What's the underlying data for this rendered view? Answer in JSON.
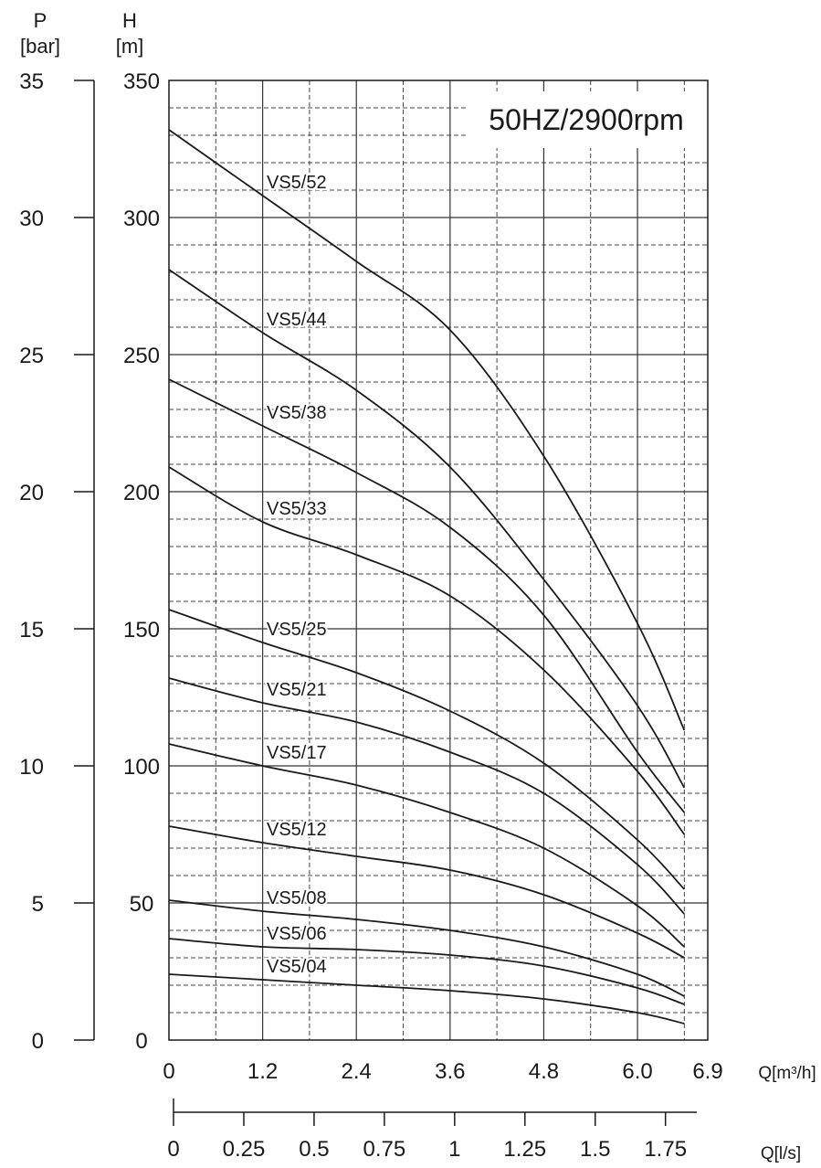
{
  "chart_data": {
    "type": "line",
    "title": "50HZ/2900rpm",
    "axes": {
      "p": {
        "label_top": "P",
        "label_unit": "[bar]",
        "ticks": [
          "0",
          "5",
          "10",
          "15",
          "20",
          "25",
          "30",
          "35"
        ],
        "range": [
          0,
          35
        ]
      },
      "h": {
        "label_top": "H",
        "label_unit": "[m]",
        "ticks": [
          "0",
          "50",
          "100",
          "150",
          "200",
          "250",
          "300",
          "350"
        ],
        "range": [
          0,
          350
        ]
      },
      "q_m3h": {
        "label": "Q[m³/h]",
        "ticks": [
          "0",
          "1.2",
          "2.4",
          "3.6",
          "4.8",
          "6.0",
          "6.9"
        ],
        "tick_values": [
          0,
          1.2,
          2.4,
          3.6,
          4.8,
          6.0,
          6.9
        ],
        "range": [
          0,
          6.9
        ]
      },
      "q_ls": {
        "label": "Q[l/s]",
        "ticks": [
          "0",
          "0.25",
          "0.5",
          "0.75",
          "1",
          "1.25",
          "1.5",
          "1.75"
        ],
        "tick_values": [
          0,
          0.25,
          0.5,
          0.75,
          1,
          1.25,
          1.5,
          1.75
        ]
      }
    },
    "grid": true,
    "series": [
      {
        "name": "VS5/52",
        "x": [
          0,
          1.2,
          2.4,
          3.6,
          4.8,
          6.0,
          6.6
        ],
        "y": [
          332,
          308,
          284,
          259,
          213,
          152,
          113
        ]
      },
      {
        "name": "VS5/44",
        "x": [
          0,
          1.2,
          2.4,
          3.6,
          4.8,
          6.0,
          6.6
        ],
        "y": [
          281,
          258,
          237,
          209,
          168,
          122,
          92
        ]
      },
      {
        "name": "VS5/38",
        "x": [
          0,
          1.2,
          2.4,
          3.6,
          4.8,
          6.0,
          6.6
        ],
        "y": [
          241,
          224,
          207,
          187,
          155,
          105,
          83
        ]
      },
      {
        "name": "VS5/33",
        "x": [
          0,
          1.2,
          2.4,
          3.6,
          4.8,
          6.0,
          6.6
        ],
        "y": [
          209,
          189,
          177,
          162,
          135,
          98,
          75
        ]
      },
      {
        "name": "VS5/25",
        "x": [
          0,
          1.2,
          2.4,
          3.6,
          4.8,
          6.0,
          6.6
        ],
        "y": [
          157,
          145,
          134,
          120,
          101,
          73,
          55
        ]
      },
      {
        "name": "VS5/21",
        "x": [
          0,
          1.2,
          2.4,
          3.6,
          4.8,
          6.0,
          6.6
        ],
        "y": [
          132,
          123,
          116,
          105,
          90,
          64,
          46
        ]
      },
      {
        "name": "VS5/17",
        "x": [
          0,
          1.2,
          2.4,
          3.6,
          4.8,
          6.0,
          6.6
        ],
        "y": [
          108,
          100,
          93,
          83,
          70,
          49,
          34
        ]
      },
      {
        "name": "VS5/12",
        "x": [
          0,
          1.2,
          2.4,
          3.6,
          4.8,
          6.0,
          6.6
        ],
        "y": [
          78,
          72,
          67,
          62,
          53,
          39,
          30
        ]
      },
      {
        "name": "VS5/08",
        "x": [
          0,
          1.2,
          2.4,
          3.6,
          4.8,
          6.0,
          6.6
        ],
        "y": [
          51,
          47,
          44,
          40,
          34,
          24,
          16
        ]
      },
      {
        "name": "VS5/06",
        "x": [
          0,
          1.2,
          2.4,
          3.6,
          4.8,
          6.0,
          6.6
        ],
        "y": [
          37,
          34,
          33,
          31,
          27,
          19,
          13
        ]
      },
      {
        "name": "VS5/04",
        "x": [
          0,
          1.2,
          2.4,
          3.6,
          4.8,
          6.0,
          6.6
        ],
        "y": [
          24,
          22,
          20,
          18,
          15,
          10,
          6
        ]
      }
    ]
  }
}
